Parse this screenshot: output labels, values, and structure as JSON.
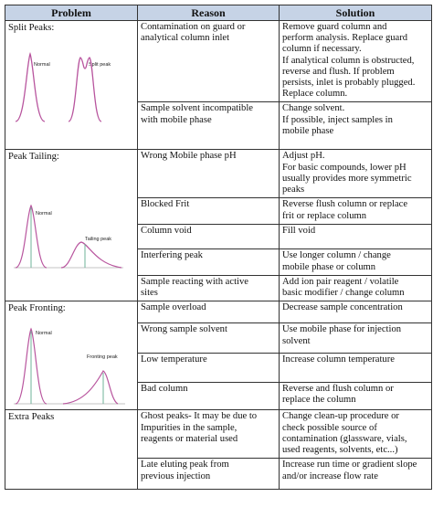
{
  "table": {
    "headers": [
      "Problem",
      "Reason",
      "Solution"
    ],
    "groups": [
      {
        "problem": "Split Peaks:",
        "figure_labels": [
          "Normal",
          "Split peak"
        ],
        "rows": [
          {
            "reason": [
              "Contamination on guard or",
              "analytical column inlet"
            ],
            "solution": [
              "Remove guard column and",
              "perform analysis. Replace guard",
              "column if necessary.",
              "If analytical column is obstructed,",
              "reverse and flush. If problem",
              "persists, inlet is probably plugged.",
              "Replace column."
            ]
          },
          {
            "reason": [
              "Sample solvent incompatible",
              "with mobile phase"
            ],
            "solution": [
              "Change solvent.",
              "If possible, inject samples in",
              "mobile phase"
            ]
          }
        ]
      },
      {
        "problem": "Peak Tailing:",
        "figure_labels": [
          "Normal",
          "Tailing peak"
        ],
        "rows": [
          {
            "reason": [
              "Wrong Mobile phase pH"
            ],
            "solution": [
              "Adjust pH.",
              "For basic compounds, lower pH",
              "usually provides more symmetric",
              "peaks"
            ]
          },
          {
            "reason": [
              "Blocked Frit"
            ],
            "solution": [
              "Reverse flush column  or replace",
              "frit  or replace column"
            ]
          },
          {
            "reason": [
              "Column void"
            ],
            "solution": [
              "Fill void"
            ]
          },
          {
            "reason": [
              "Interfering peak"
            ],
            "solution": [
              "Use longer column / change",
              "mobile phase or column"
            ]
          },
          {
            "reason": [
              "Sample reacting with active",
              "sites"
            ],
            "solution": [
              "Add ion pair reagent / volatile",
              "basic modifier / change column"
            ]
          }
        ]
      },
      {
        "problem": "Peak Fronting:",
        "figure_labels": [
          "Normal",
          "Fronting peak"
        ],
        "rows": [
          {
            "reason": [
              "Sample overload"
            ],
            "solution": [
              "Decrease sample concentration"
            ]
          },
          {
            "reason": [
              "Wrong sample solvent"
            ],
            "solution": [
              "Use mobile phase for injection",
              "solvent"
            ]
          },
          {
            "reason": [
              "Low temperature"
            ],
            "solution": [
              "Increase column temperature"
            ]
          },
          {
            "reason": [
              "Bad column"
            ],
            "solution": [
              "Reverse and flush column or",
              "replace the column"
            ]
          }
        ]
      },
      {
        "problem": "Extra Peaks",
        "figure_labels": [],
        "rows": [
          {
            "reason": [
              "Ghost peaks- It may be due  to",
              "Impurities in the sample,",
              "reagents or material used"
            ],
            "solution": [
              "Change clean-up procedure or",
              "check possible source of",
              "contamination (glassware, vials,",
              "used reagents, solvents, etc...)"
            ]
          },
          {
            "reason": [
              "Late eluting peak from",
              "previous injection"
            ],
            "solution": [
              "Increase run time or gradient slope",
              "and/or increase flow rate"
            ]
          }
        ]
      }
    ]
  },
  "colors": {
    "header_bg": "#c6d3e6",
    "curve": "#b8559e",
    "marker": "#6fb39a",
    "border": "#333333"
  }
}
